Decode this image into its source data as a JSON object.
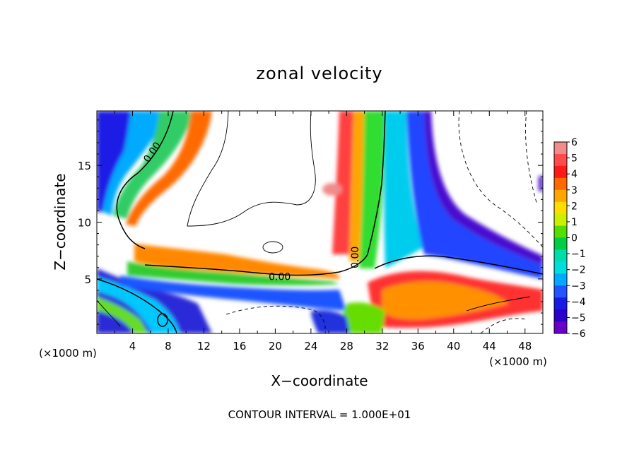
{
  "chart_data": {
    "type": "heatmap",
    "title": "zonal velocity",
    "xlabel": "X−coordinate",
    "ylabel": "Z−coordinate",
    "x_unit_left": "(×1000 m)",
    "x_unit_right": "(×1000 m)",
    "footer": "CONTOUR INTERVAL = 1.000E+01",
    "xlim": [
      0,
      50
    ],
    "ylim": [
      0.2,
      19.8
    ],
    "x_ticks": [
      4,
      8,
      12,
      16,
      20,
      24,
      28,
      32,
      36,
      40,
      44,
      48
    ],
    "x_tick_labels": [
      "4",
      "8",
      "12",
      "16",
      "20",
      "24",
      "28",
      "32",
      "36",
      "40",
      "44",
      "48"
    ],
    "y_ticks": [
      5,
      10,
      15
    ],
    "y_tick_labels": [
      "5",
      "10",
      "15"
    ],
    "colorbar": {
      "range": [
        -6,
        6
      ],
      "tick_values": [
        6,
        5,
        4,
        3,
        2,
        1,
        0,
        -1,
        -2,
        -3,
        -4,
        -5,
        -6
      ],
      "tick_labels": [
        "6",
        "5",
        "4",
        "3",
        "2",
        "1",
        "0",
        "−1",
        "−2",
        "−3",
        "−4",
        "−5",
        "−6"
      ],
      "colors": [
        "#f08c8c",
        "#ff4b4b",
        "#ff1a1a",
        "#ff6a00",
        "#ffa500",
        "#ffdd00",
        "#ccee00",
        "#55dd00",
        "#00cc44",
        "#00ddaa",
        "#00dddd",
        "#00aaff",
        "#2255ff",
        "#1a1ae6",
        "#2a00cc",
        "#6a00c8"
      ]
    },
    "contour_labels": [
      {
        "text": "0.00",
        "x": 6.5,
        "z": 16.0
      },
      {
        "text": "0.00",
        "x": 20.5,
        "z": 4.9
      },
      {
        "text": "0.00",
        "x": 29.3,
        "z": 6.9
      }
    ]
  }
}
